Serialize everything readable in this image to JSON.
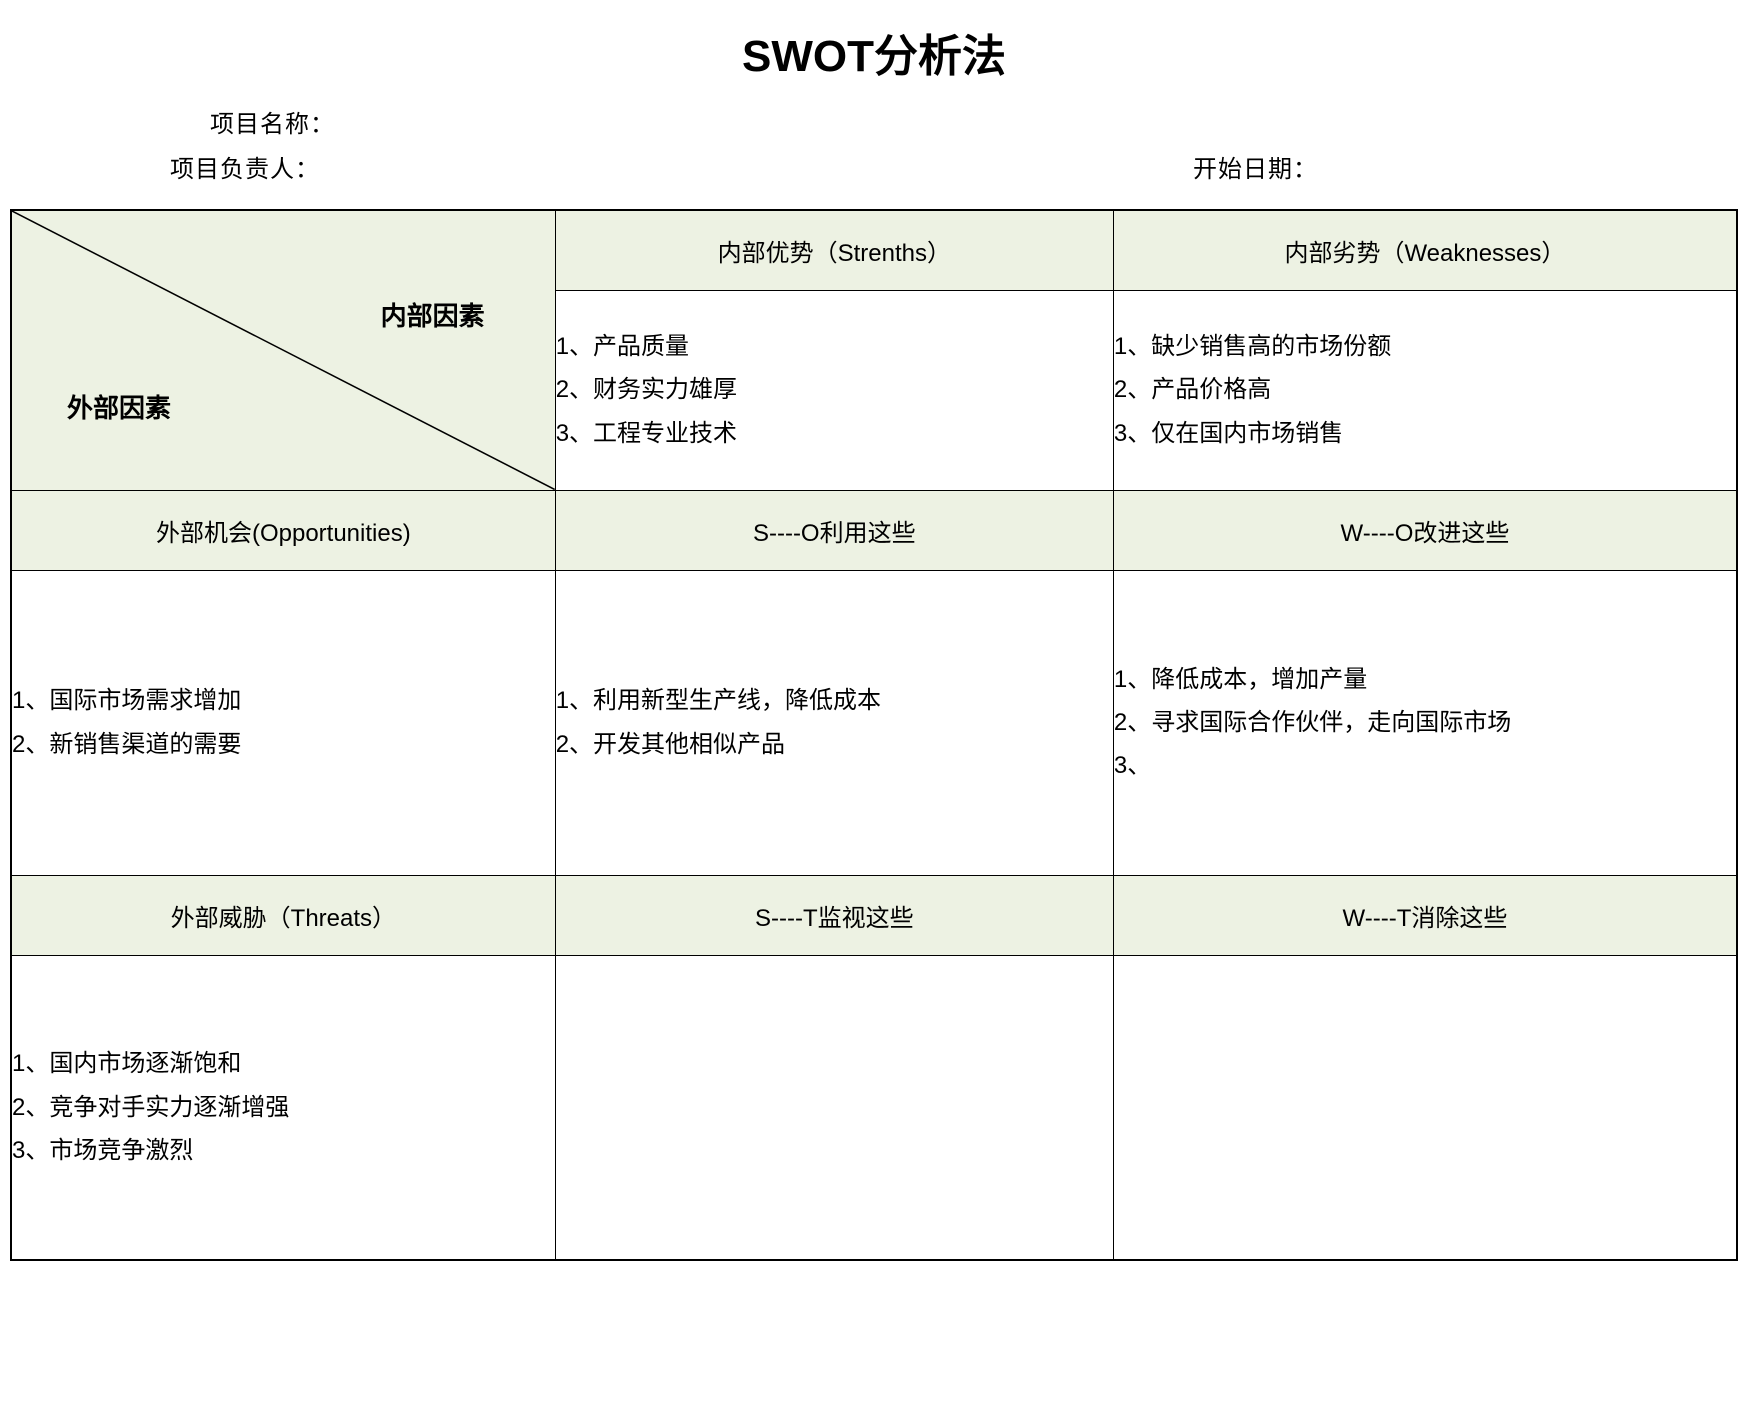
{
  "title": "SWOT分析法",
  "meta": {
    "project_name_label": "项目名称：",
    "project_owner_label": "项目负责人：",
    "start_date_label": "开始日期："
  },
  "diagonal": {
    "internal_label": "内部因素",
    "external_label": "外部因素"
  },
  "headers": {
    "strengths": "内部优势（Strenths）",
    "weaknesses": "内部劣势（Weaknesses）",
    "opportunities": "外部机会(Opportunities)",
    "threats": "外部威胁（Threats）",
    "so": "S----O利用这些",
    "wo": "W----O改进这些",
    "st": "S----T监视这些",
    "wt": "W----T消除这些"
  },
  "content": {
    "strengths": "1、产品质量\n2、财务实力雄厚\n3、工程专业技术",
    "weaknesses": "1、缺少销售高的市场份额\n2、产品价格高\n3、仅在国内市场销售",
    "opportunities": "1、国际市场需求增加\n2、新销售渠道的需要",
    "so": "1、利用新型生产线，降低成本\n2、开发其他相似产品",
    "wo": "1、降低成本，增加产量\n2、寻求国际合作伙伴，走向国际市场\n3、",
    "threats": "1、国内市场逐渐饱和\n2、竞争对手实力逐渐增强\n3、市场竞争激烈",
    "st": "",
    "wt": ""
  },
  "colors": {
    "header_bg": "#edf2e3",
    "border": "#000000",
    "text": "#000000",
    "background": "#ffffff"
  }
}
